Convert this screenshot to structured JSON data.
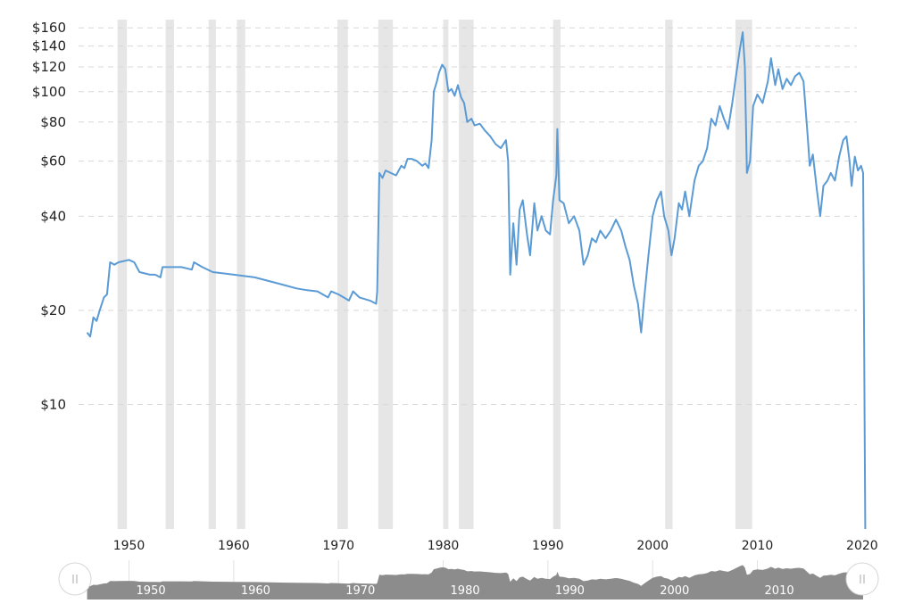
{
  "chart_data": {
    "type": "line",
    "title": "",
    "xlabel": "",
    "ylabel": "",
    "y_scale": "log",
    "xlim": [
      1944.5,
      2019.5
    ],
    "ylim": [
      4,
      170
    ],
    "grid": true,
    "y_ticks": [
      {
        "value": 160,
        "label": "$160"
      },
      {
        "value": 140,
        "label": "$140"
      },
      {
        "value": 120,
        "label": "$120"
      },
      {
        "value": 100,
        "label": "$100"
      },
      {
        "value": 80,
        "label": "$80"
      },
      {
        "value": 60,
        "label": "$60"
      },
      {
        "value": 40,
        "label": "$40"
      },
      {
        "value": 20,
        "label": "$20"
      },
      {
        "value": 10,
        "label": "$10"
      }
    ],
    "x_ticks": [
      {
        "value": 1950,
        "label": "1950"
      },
      {
        "value": 1960,
        "label": "1960"
      },
      {
        "value": 1970,
        "label": "1970"
      },
      {
        "value": 1980,
        "label": "1980"
      },
      {
        "value": 1990,
        "label": "1990"
      },
      {
        "value": 2000,
        "label": "2000"
      },
      {
        "value": 2010,
        "label": "2010"
      },
      {
        "value": 2020,
        "label": "2020"
      }
    ],
    "recessions": [
      [
        1948.9,
        1949.8
      ],
      [
        1953.5,
        1954.3
      ],
      [
        1957.6,
        1958.3
      ],
      [
        1960.3,
        1961.1
      ],
      [
        1969.9,
        1970.9
      ],
      [
        1973.8,
        1975.2
      ],
      [
        1980.0,
        1980.5
      ],
      [
        1981.5,
        1982.9
      ],
      [
        1990.5,
        1991.2
      ],
      [
        2001.2,
        2001.9
      ],
      [
        2007.9,
        2009.5
      ]
    ],
    "colors": {
      "line": "#5b9bd5",
      "recession": "#e6e6e6",
      "navigator": "#8c8c8c"
    },
    "series": [
      {
        "points": [
          [
            1946.0,
            17
          ],
          [
            1946.3,
            16.5
          ],
          [
            1946.6,
            19
          ],
          [
            1946.9,
            18.5
          ],
          [
            1947.2,
            20
          ],
          [
            1947.6,
            22
          ],
          [
            1947.9,
            22.5
          ],
          [
            1948.2,
            28.5
          ],
          [
            1948.6,
            28
          ],
          [
            1949.0,
            28.5
          ],
          [
            1950.0,
            29
          ],
          [
            1950.5,
            28.5
          ],
          [
            1951.0,
            26.5
          ],
          [
            1952.0,
            26
          ],
          [
            1952.5,
            26
          ],
          [
            1953.0,
            25.5
          ],
          [
            1953.2,
            27.5
          ],
          [
            1954.0,
            27.5
          ],
          [
            1955.0,
            27.5
          ],
          [
            1956.0,
            27
          ],
          [
            1956.2,
            28.5
          ],
          [
            1957.0,
            27.5
          ],
          [
            1958.0,
            26.5
          ],
          [
            1960.0,
            26
          ],
          [
            1962.0,
            25.5
          ],
          [
            1964.0,
            24.5
          ],
          [
            1965.0,
            24
          ],
          [
            1966.0,
            23.5
          ],
          [
            1967.0,
            23.2
          ],
          [
            1968.0,
            23
          ],
          [
            1969.0,
            22
          ],
          [
            1969.3,
            23
          ],
          [
            1970.0,
            22.5
          ],
          [
            1970.5,
            22
          ],
          [
            1971.0,
            21.5
          ],
          [
            1971.4,
            23
          ],
          [
            1972.0,
            22
          ],
          [
            1973.0,
            21.5
          ],
          [
            1973.6,
            21
          ],
          [
            1973.7,
            23
          ],
          [
            1973.9,
            55
          ],
          [
            1974.2,
            53
          ],
          [
            1974.5,
            56
          ],
          [
            1975.0,
            55
          ],
          [
            1975.5,
            54
          ],
          [
            1976.0,
            58
          ],
          [
            1976.3,
            57
          ],
          [
            1976.6,
            61
          ],
          [
            1977.0,
            61
          ],
          [
            1977.5,
            60
          ],
          [
            1978.0,
            58
          ],
          [
            1978.3,
            59
          ],
          [
            1978.6,
            57
          ],
          [
            1978.9,
            70
          ],
          [
            1979.1,
            100
          ],
          [
            1979.4,
            108
          ],
          [
            1979.6,
            115
          ],
          [
            1979.9,
            122
          ],
          [
            1980.2,
            118
          ],
          [
            1980.5,
            100
          ],
          [
            1980.8,
            102
          ],
          [
            1981.1,
            97
          ],
          [
            1981.4,
            105
          ],
          [
            1981.7,
            96
          ],
          [
            1982.0,
            92
          ],
          [
            1982.3,
            80
          ],
          [
            1982.7,
            82
          ],
          [
            1983.0,
            78
          ],
          [
            1983.5,
            79
          ],
          [
            1984.0,
            75
          ],
          [
            1984.5,
            72
          ],
          [
            1985.0,
            68
          ],
          [
            1985.5,
            66
          ],
          [
            1986.0,
            70
          ],
          [
            1986.2,
            60
          ],
          [
            1986.4,
            26
          ],
          [
            1986.7,
            38
          ],
          [
            1987.0,
            28
          ],
          [
            1987.3,
            42
          ],
          [
            1987.6,
            45
          ],
          [
            1988.0,
            35
          ],
          [
            1988.3,
            30
          ],
          [
            1988.7,
            44
          ],
          [
            1989.0,
            36
          ],
          [
            1989.4,
            40
          ],
          [
            1989.8,
            36
          ],
          [
            1990.2,
            35
          ],
          [
            1990.5,
            45
          ],
          [
            1990.8,
            54
          ],
          [
            1990.9,
            76
          ],
          [
            1991.1,
            45
          ],
          [
            1991.5,
            44
          ],
          [
            1992.0,
            38
          ],
          [
            1992.5,
            40
          ],
          [
            1993.0,
            36
          ],
          [
            1993.4,
            28
          ],
          [
            1993.8,
            30
          ],
          [
            1994.2,
            34
          ],
          [
            1994.6,
            33
          ],
          [
            1995.0,
            36
          ],
          [
            1995.5,
            34
          ],
          [
            1996.0,
            36
          ],
          [
            1996.5,
            39
          ],
          [
            1997.0,
            36
          ],
          [
            1997.4,
            32
          ],
          [
            1997.8,
            29
          ],
          [
            1998.2,
            24
          ],
          [
            1998.6,
            21
          ],
          [
            1998.9,
            17
          ],
          [
            1999.2,
            22
          ],
          [
            1999.6,
            30
          ],
          [
            2000.0,
            40
          ],
          [
            2000.4,
            45
          ],
          [
            2000.8,
            48
          ],
          [
            2001.1,
            40
          ],
          [
            2001.5,
            36
          ],
          [
            2001.8,
            30
          ],
          [
            2002.1,
            34
          ],
          [
            2002.5,
            44
          ],
          [
            2002.8,
            42
          ],
          [
            2003.1,
            48
          ],
          [
            2003.5,
            40
          ],
          [
            2004.0,
            52
          ],
          [
            2004.4,
            58
          ],
          [
            2004.8,
            60
          ],
          [
            2005.2,
            66
          ],
          [
            2005.6,
            82
          ],
          [
            2006.0,
            78
          ],
          [
            2006.4,
            90
          ],
          [
            2006.8,
            82
          ],
          [
            2007.2,
            76
          ],
          [
            2007.6,
            92
          ],
          [
            2008.0,
            115
          ],
          [
            2008.3,
            135
          ],
          [
            2008.6,
            155
          ],
          [
            2008.8,
            120
          ],
          [
            2009.0,
            55
          ],
          [
            2009.3,
            60
          ],
          [
            2009.6,
            90
          ],
          [
            2010.0,
            98
          ],
          [
            2010.5,
            92
          ],
          [
            2011.0,
            108
          ],
          [
            2011.3,
            128
          ],
          [
            2011.7,
            105
          ],
          [
            2012.0,
            118
          ],
          [
            2012.4,
            102
          ],
          [
            2012.8,
            110
          ],
          [
            2013.2,
            105
          ],
          [
            2013.6,
            112
          ],
          [
            2014.0,
            115
          ],
          [
            2014.4,
            108
          ],
          [
            2014.8,
            72
          ],
          [
            2015.0,
            58
          ],
          [
            2015.3,
            63
          ],
          [
            2015.7,
            48
          ],
          [
            2016.0,
            40
          ],
          [
            2016.3,
            50
          ],
          [
            2016.7,
            52
          ],
          [
            2017.0,
            55
          ],
          [
            2017.4,
            52
          ],
          [
            2017.8,
            62
          ],
          [
            2018.2,
            70
          ],
          [
            2018.5,
            72
          ],
          [
            2018.8,
            60
          ],
          [
            2019.0,
            50
          ],
          [
            2019.3,
            62
          ],
          [
            2019.6,
            56
          ],
          [
            2019.9,
            58
          ],
          [
            2020.1,
            55
          ],
          [
            2020.3,
            4
          ]
        ]
      }
    ]
  }
}
